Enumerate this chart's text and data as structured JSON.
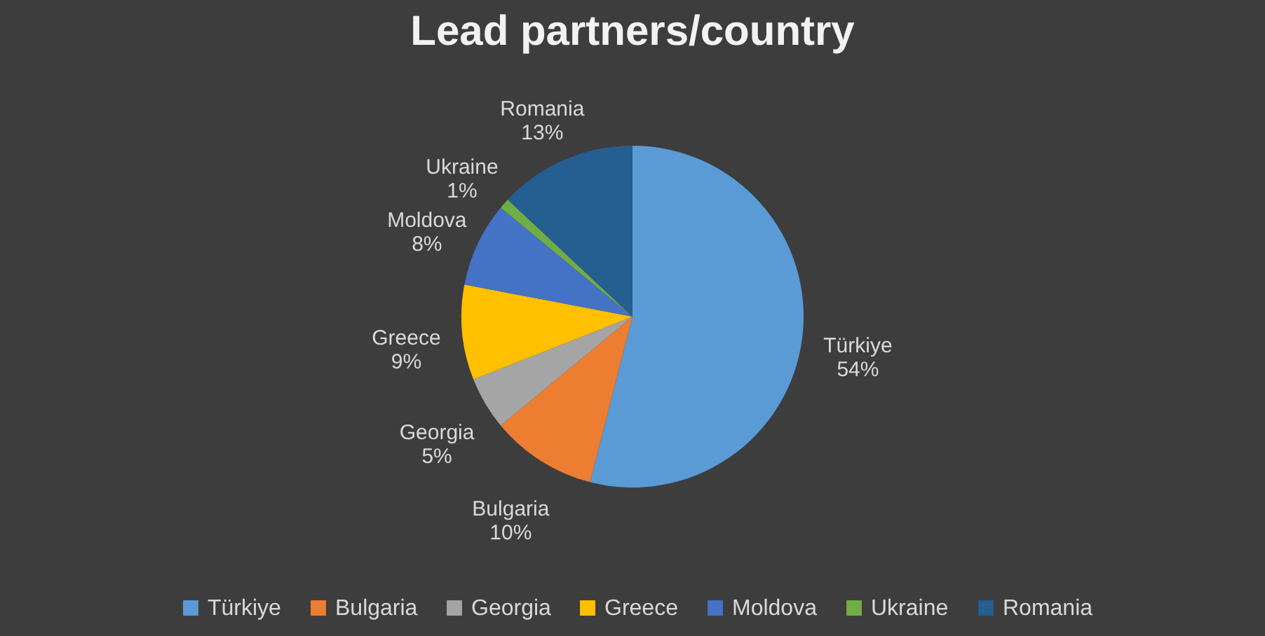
{
  "chart_data": {
    "type": "pie",
    "title": "Lead partners/country",
    "categories": [
      "Türkiye",
      "Bulgaria",
      "Georgia",
      "Greece",
      "Moldova",
      "Ukraine",
      "Romania"
    ],
    "values": [
      54,
      10,
      5,
      9,
      8,
      1,
      13
    ],
    "colors": [
      "#5b9bd5",
      "#ed7d31",
      "#a5a5a5",
      "#ffc000",
      "#4472c4",
      "#70ad47",
      "#255e91"
    ],
    "value_labels": [
      "54%",
      "10%",
      "5%",
      "9%",
      "8%",
      "1%",
      "13%"
    ],
    "legend": "bottom"
  }
}
